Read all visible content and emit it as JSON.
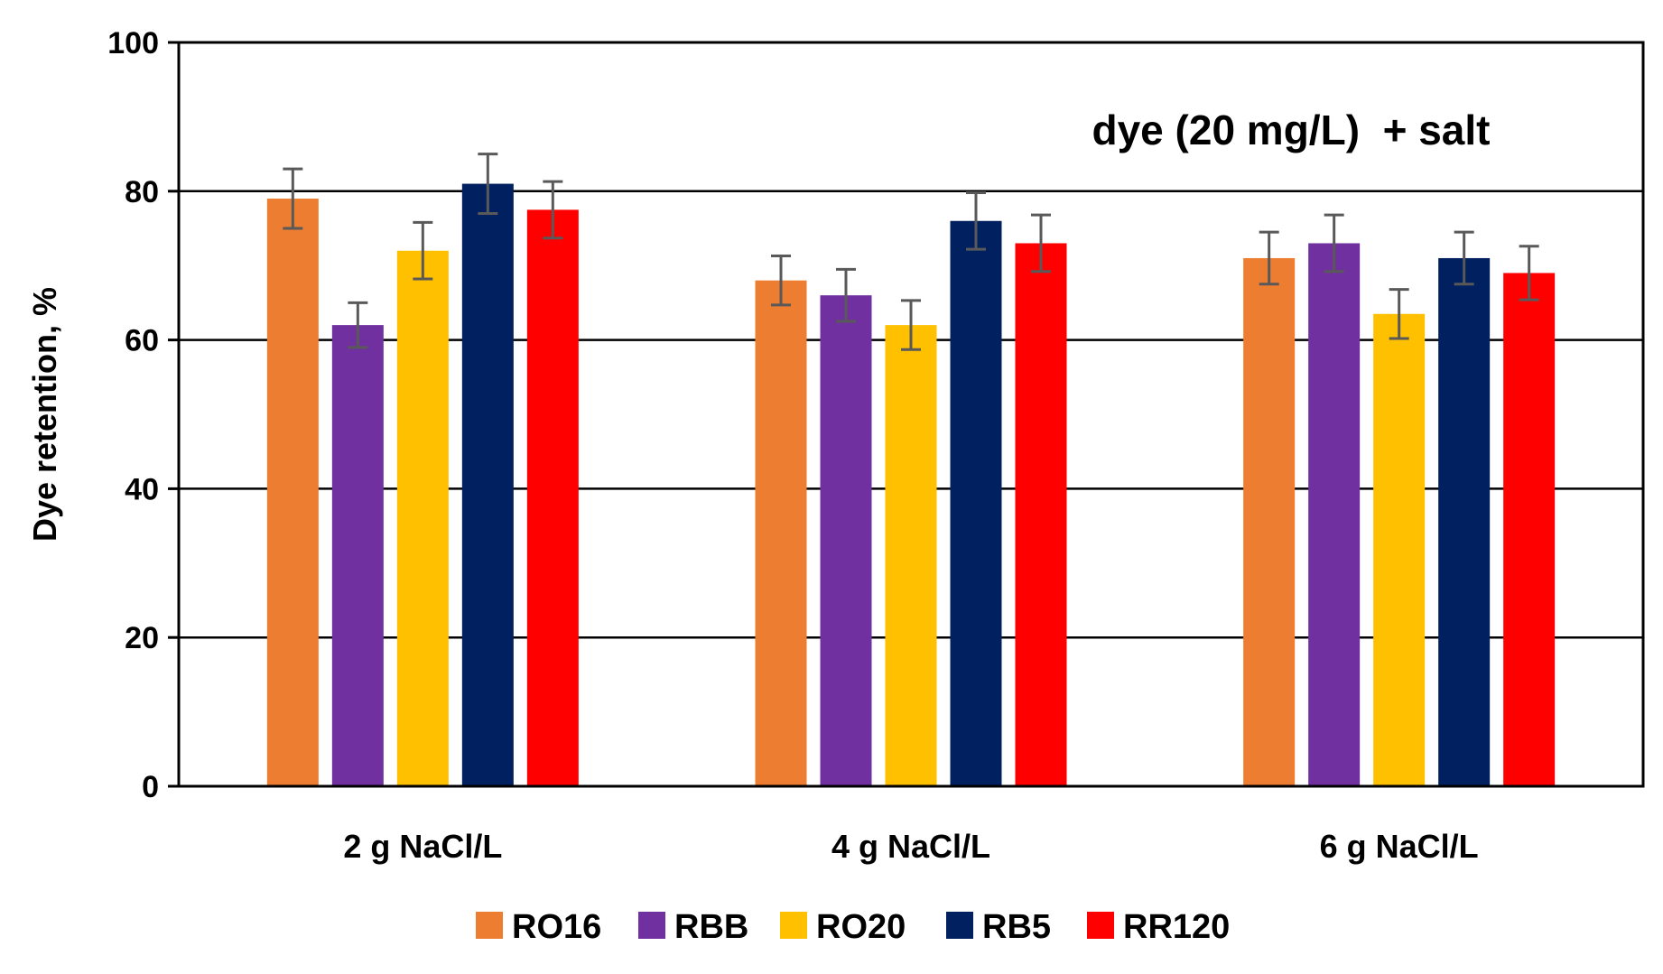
{
  "chart_data": {
    "type": "bar",
    "title": "",
    "annotation": "dye (20 mg/L)  + salt",
    "xlabel": "",
    "ylabel": "Dye retention, %",
    "ylim": [
      0,
      100
    ],
    "yticks": [
      0,
      20,
      40,
      60,
      80,
      100
    ],
    "grid": true,
    "legend_position": "bottom",
    "categories": [
      "2 g NaCl/L",
      "4 g NaCl/L",
      "6 g NaCl/L"
    ],
    "series": [
      {
        "name": "RO16",
        "color": "#ED7D31",
        "values": [
          79,
          68,
          71
        ],
        "errors": [
          4.0,
          3.3,
          3.5
        ]
      },
      {
        "name": "RBB",
        "color": "#7030A0",
        "values": [
          62,
          66,
          73
        ],
        "errors": [
          3.0,
          3.5,
          3.8
        ]
      },
      {
        "name": "RO20",
        "color": "#FFC000",
        "values": [
          72,
          62,
          63.5
        ],
        "errors": [
          3.8,
          3.3,
          3.3
        ]
      },
      {
        "name": "RB5",
        "color": "#002060",
        "values": [
          81,
          76,
          71
        ],
        "errors": [
          4.0,
          3.8,
          3.5
        ]
      },
      {
        "name": "RR120",
        "color": "#FF0000",
        "values": [
          77.5,
          73,
          69
        ],
        "errors": [
          3.8,
          3.8,
          3.6
        ]
      }
    ]
  }
}
